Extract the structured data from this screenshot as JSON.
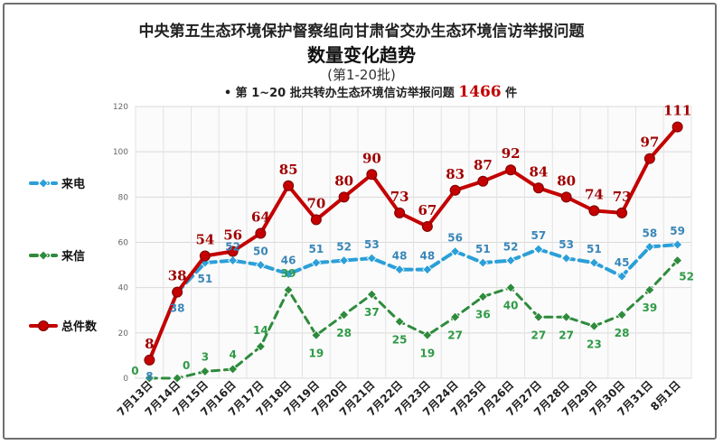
{
  "chart_data": {
    "type": "line",
    "title_line1": "中央第五生态环境保护督察组向甘肃省交办生态环境信访举报问题",
    "title_line2": "数量变化趋势",
    "subtitle": "(第1-20批)",
    "summary": {
      "prefix": "• 第 1~20 批共转办生态环境信访举报问题",
      "total": "1466",
      "unit": "件"
    },
    "xlabel": "",
    "ylabel": "",
    "ylim": [
      0,
      120
    ],
    "yticks": [
      0,
      20,
      40,
      60,
      80,
      100,
      120
    ],
    "grid": true,
    "legend_position": "left",
    "categories": [
      "7月13日",
      "7月14日",
      "7月15日",
      "7月16日",
      "7月17日",
      "7月18日",
      "7月19日",
      "7月20日",
      "7月21日",
      "7月22日",
      "7月23日",
      "7月24日",
      "7月25日",
      "7月26日",
      "7月27日",
      "7月28日",
      "7月29日",
      "7月30日",
      "7月31日",
      "8月1日"
    ],
    "series": [
      {
        "name": "来电",
        "color": "#2b9fd8",
        "label_color": "#3a86b8",
        "style": "dashed",
        "marker": "diamond",
        "values": [
          8,
          38,
          51,
          52,
          50,
          46,
          51,
          52,
          53,
          48,
          48,
          56,
          51,
          52,
          57,
          53,
          51,
          45,
          58,
          59
        ]
      },
      {
        "name": "来信",
        "color": "#2e8b3c",
        "label_color": "#2f9a46",
        "style": "dashed",
        "marker": "diamond",
        "values": [
          0,
          0,
          3,
          4,
          14,
          39,
          19,
          28,
          37,
          25,
          19,
          27,
          36,
          40,
          27,
          27,
          23,
          28,
          39,
          52
        ]
      },
      {
        "name": "总件数",
        "color": "#c40000",
        "label_color": "#a00000",
        "style": "solid",
        "marker": "circle",
        "values": [
          8,
          38,
          54,
          56,
          64,
          85,
          70,
          80,
          90,
          73,
          67,
          83,
          87,
          92,
          84,
          80,
          74,
          73,
          97,
          111
        ]
      }
    ]
  }
}
